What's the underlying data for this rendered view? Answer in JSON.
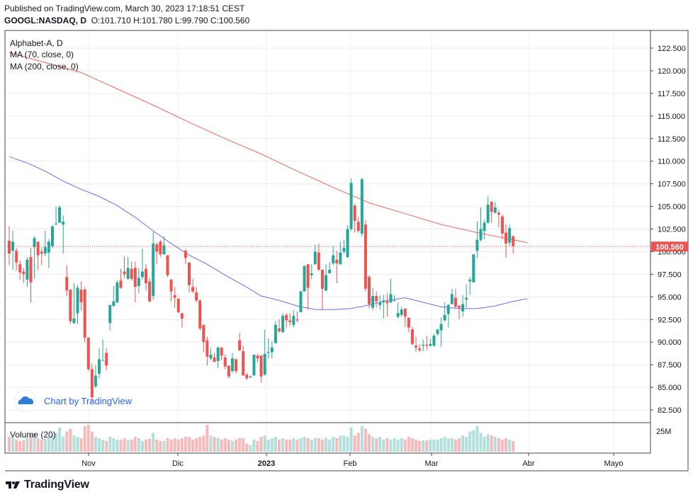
{
  "header": {
    "published": "Published on TradingView.com, March 30, 2023 17:18:51 CEST",
    "symbol": "GOOGL:NASDAQ, D",
    "o_label": "O:",
    "o_value": "101.710",
    "h_label": "H:",
    "h_value": "101.780",
    "l_label": "L:",
    "l_value": "99.790",
    "c_label": "C:",
    "c_value": "100.560"
  },
  "legend": {
    "title": "Alphabet-A, D",
    "ma70": "MA (70, close, 0)",
    "ma200": "MA (200, close, 0)"
  },
  "volume_pane": {
    "label": "Volume (20)",
    "axis_label": "25M"
  },
  "watermark": {
    "text": "Chart by TradingView"
  },
  "footer": {
    "brand": "TradingView"
  },
  "colors": {
    "up": "#26a69a",
    "down": "#ef5350",
    "up_volume": "#b2dfdb",
    "down_volume": "#f7b9b9",
    "ma70": "#6b6bf0",
    "ma200": "#f0665a",
    "last_price_bg": "#ef5350",
    "grid": "#e9ecf2",
    "axis_text": "#131722"
  },
  "chart_data": {
    "type": "candlestick",
    "price_axis": {
      "ticks": [
        "122.500",
        "120.000",
        "117.500",
        "115.000",
        "112.500",
        "110.000",
        "107.500",
        "105.000",
        "102.500",
        "100.000",
        "97.500",
        "95.000",
        "92.500",
        "90.000",
        "87.500",
        "85.000",
        "82.500"
      ],
      "range": [
        80.5,
        124.0
      ]
    },
    "time_axis": {
      "labels": [
        "Nov",
        "Dic",
        "2023",
        "Feb",
        "Mar",
        "Abr",
        "Mayo"
      ]
    },
    "last_price": "100.560",
    "candles": [
      [
        101.2,
        99.8,
        102.8,
        98.5
      ],
      [
        100.1,
        101.1,
        102.3,
        98.0
      ],
      [
        100.1,
        98.8,
        100.4,
        97.9
      ],
      [
        98.6,
        97.7,
        99.0,
        96.9
      ],
      [
        97.8,
        97.5,
        98.2,
        96.5
      ],
      [
        96.9,
        99.1,
        99.4,
        96.1
      ],
      [
        99.4,
        96.6,
        100.4,
        94.4
      ],
      [
        100.5,
        101.5,
        101.7,
        97.0
      ],
      [
        101.1,
        99.6,
        101.1,
        98.0
      ],
      [
        100.0,
        99.8,
        100.4,
        98.5
      ],
      [
        99.8,
        100.5,
        102.3,
        99.5
      ],
      [
        99.9,
        101.1,
        101.4,
        98.2
      ],
      [
        100.6,
        102.8,
        102.9,
        100.4
      ],
      [
        103.0,
        103.1,
        105.0,
        103.0
      ],
      [
        103.2,
        104.9,
        105.1,
        103.2
      ],
      [
        103.0,
        103.3,
        104.0,
        99.8
      ],
      [
        97.2,
        95.7,
        98.5,
        95.1
      ],
      [
        95.8,
        92.3,
        95.8,
        92.0
      ],
      [
        92.1,
        92.6,
        96.5,
        92.0
      ],
      [
        93.2,
        96.0,
        96.3,
        92.0
      ],
      [
        95.8,
        94.4,
        96.7,
        93.5
      ],
      [
        95.8,
        90.5,
        96.1,
        90.0
      ],
      [
        90.5,
        87.0,
        90.5,
        86.8
      ],
      [
        87.0,
        83.9,
        87.6,
        83.3
      ],
      [
        85.1,
        86.3,
        87.5,
        84.9
      ],
      [
        86.5,
        88.1,
        89.3,
        86.0
      ],
      [
        88.0,
        88.0,
        90.3,
        88.0
      ],
      [
        88.8,
        87.4,
        89.3,
        86.9
      ],
      [
        92.1,
        94.1,
        94.1,
        91.3
      ],
      [
        94.0,
        94.5,
        96.2,
        93.9
      ],
      [
        94.4,
        96.6,
        96.8,
        94.3
      ],
      [
        96.8,
        96.0,
        98.1,
        95.9
      ],
      [
        97.8,
        97.5,
        99.5,
        97.1
      ],
      [
        97.0,
        98.2,
        99.4,
        96.9
      ],
      [
        98.1,
        97.0,
        98.9,
        96.8
      ],
      [
        98.2,
        96.1,
        98.9,
        94.4
      ],
      [
        96.2,
        97.1,
        98.2,
        95.4
      ],
      [
        97.2,
        97.8,
        100.3,
        96.9
      ],
      [
        98.1,
        96.5,
        98.6,
        95.7
      ],
      [
        96.7,
        94.5,
        97.1,
        94.4
      ],
      [
        95.1,
        100.9,
        102.2,
        94.7
      ],
      [
        100.8,
        100.0,
        101.0,
        98.6
      ],
      [
        101.1,
        99.7,
        101.3,
        99.4
      ],
      [
        99.7,
        100.7,
        101.7,
        99.7
      ],
      [
        99.6,
        97.4,
        99.6,
        97.2
      ],
      [
        96.9,
        95.6,
        97.0,
        94.5
      ],
      [
        95.2,
        94.9,
        96.1,
        93.8
      ],
      [
        94.8,
        93.3,
        94.8,
        93.2
      ],
      [
        93.2,
        92.6,
        93.2,
        91.6
      ],
      [
        100.1,
        99.3,
        100.3,
        98.6
      ],
      [
        98.8,
        96.3,
        98.8,
        95.5
      ],
      [
        96.1,
        95.6,
        97.0,
        95.4
      ],
      [
        95.5,
        94.6,
        96.1,
        94.4
      ],
      [
        94.6,
        91.5,
        94.7,
        91.3
      ],
      [
        91.9,
        90.0,
        91.9,
        88.9
      ],
      [
        90.2,
        88.4,
        90.6,
        87.4
      ],
      [
        88.2,
        88.6,
        89.4,
        88.0
      ],
      [
        88.3,
        87.8,
        88.8,
        87.8
      ],
      [
        87.9,
        89.4,
        89.5,
        87.1
      ],
      [
        89.4,
        88.5,
        89.4,
        88.0
      ],
      [
        88.3,
        87.3,
        88.6,
        87.0
      ],
      [
        87.4,
        86.2,
        87.4,
        86.0
      ],
      [
        86.8,
        88.2,
        88.8,
        86.6
      ],
      [
        88.1,
        86.8,
        88.2,
        86.5
      ],
      [
        90.2,
        89.1,
        91.0,
        89.0
      ],
      [
        89.0,
        86.3,
        89.6,
        86.3
      ],
      [
        86.4,
        86.0,
        86.6,
        85.8
      ],
      [
        86.1,
        86.2,
        86.3,
        86.0
      ],
      [
        86.3,
        88.6,
        88.6,
        86.3
      ],
      [
        88.5,
        88.2,
        88.7,
        87.8
      ],
      [
        88.5,
        86.2,
        88.6,
        85.5
      ],
      [
        86.4,
        88.7,
        91.4,
        86.3
      ],
      [
        88.8,
        88.9,
        90.4,
        88.2
      ],
      [
        88.9,
        89.4,
        90.1,
        88.2
      ],
      [
        89.9,
        91.9,
        92.3,
        89.8
      ],
      [
        91.5,
        91.2,
        92.5,
        91.0
      ],
      [
        91.1,
        92.9,
        93.2,
        91.0
      ],
      [
        93.0,
        92.4,
        93.2,
        91.6
      ],
      [
        92.4,
        92.2,
        93.2,
        91.8
      ],
      [
        91.9,
        92.9,
        93.5,
        91.6
      ],
      [
        92.5,
        92.4,
        93.4,
        92.2
      ],
      [
        93.3,
        95.6,
        95.7,
        93.3
      ],
      [
        95.6,
        98.4,
        98.5,
        95.6
      ],
      [
        98.6,
        96.0,
        98.6,
        93.6
      ],
      [
        97.4,
        97.6,
        98.6,
        97.0
      ],
      [
        98.6,
        100.0,
        100.8,
        98.6
      ],
      [
        99.9,
        98.0,
        100.9,
        97.9
      ],
      [
        98.0,
        95.9,
        98.0,
        93.6
      ],
      [
        95.7,
        97.4,
        98.6,
        95.6
      ],
      [
        97.6,
        98.0,
        98.8,
        97.6
      ],
      [
        98.7,
        99.6,
        100.6,
        98.5
      ],
      [
        99.1,
        98.7,
        100.1,
        96.5
      ],
      [
        98.6,
        99.9,
        101.1,
        98.6
      ],
      [
        100.0,
        100.4,
        101.3,
        99.8
      ],
      [
        99.4,
        102.5,
        102.9,
        99.3
      ],
      [
        102.5,
        107.6,
        108.1,
        102.3
      ],
      [
        105.1,
        103.4,
        105.3,
        102.1
      ],
      [
        103.3,
        102.3,
        103.8,
        102.1
      ],
      [
        102.0,
        108.0,
        108.2,
        101.7
      ],
      [
        103.0,
        95.9,
        103.5,
        95.6
      ],
      [
        97.2,
        94.2,
        97.4,
        93.7
      ],
      [
        93.8,
        95.1,
        96.0,
        93.5
      ],
      [
        95.1,
        94.5,
        95.6,
        93.8
      ],
      [
        94.1,
        94.4,
        95.2,
        93.6
      ],
      [
        94.4,
        94.6,
        95.2,
        92.6
      ],
      [
        94.5,
        94.3,
        95.4,
        92.8
      ],
      [
        94.4,
        95.3,
        97.0,
        94.3
      ],
      [
        94.6,
        94.6,
        95.2,
        94.5
      ],
      [
        92.8,
        93.2,
        94.4,
        92.6
      ],
      [
        93.0,
        93.6,
        93.9,
        92.8
      ],
      [
        93.7,
        92.8,
        93.7,
        91.7
      ],
      [
        92.7,
        91.6,
        92.7,
        91.1
      ],
      [
        91.4,
        89.8,
        91.7,
        89.6
      ],
      [
        89.6,
        89.4,
        90.6,
        88.9
      ],
      [
        89.3,
        89.1,
        89.8,
        88.9
      ],
      [
        89.6,
        89.7,
        90.3,
        89.0
      ],
      [
        89.7,
        89.6,
        90.7,
        89.1
      ],
      [
        89.6,
        89.8,
        90.4,
        89.5
      ],
      [
        89.6,
        90.7,
        90.9,
        89.5
      ],
      [
        90.9,
        91.4,
        91.4,
        90.7
      ],
      [
        91.3,
        92.0,
        92.7,
        89.5
      ],
      [
        92.4,
        93.0,
        94.4,
        92.3
      ],
      [
        93.1,
        94.1,
        94.2,
        91.6
      ],
      [
        94.2,
        95.3,
        95.9,
        94.2
      ],
      [
        94.9,
        93.9,
        95.9,
        93.8
      ],
      [
        94.0,
        93.8,
        94.1,
        92.5
      ],
      [
        93.4,
        94.2,
        95.2,
        92.8
      ],
      [
        94.7,
        94.9,
        96.4,
        93.8
      ],
      [
        96.7,
        96.9,
        97.2,
        95.2
      ],
      [
        96.6,
        99.7,
        99.7,
        96.6
      ],
      [
        100.1,
        101.3,
        103.4,
        99.3
      ],
      [
        101.3,
        102.5,
        104.9,
        101.1
      ],
      [
        102.3,
        103.2,
        103.5,
        101.4
      ],
      [
        103.2,
        105.2,
        106.1,
        103.1
      ],
      [
        105.5,
        104.4,
        105.6,
        103.2
      ],
      [
        104.3,
        104.9,
        105.5,
        104.2
      ],
      [
        104.3,
        104.1,
        104.6,
        102.7
      ],
      [
        103.9,
        102.0,
        104.1,
        101.4
      ],
      [
        102.1,
        100.9,
        103.0,
        99.3
      ],
      [
        101.0,
        102.6,
        103.0,
        100.6
      ],
      [
        101.7,
        100.6,
        101.8,
        99.8
      ]
    ],
    "volume_relative": [
      0.55,
      0.5,
      0.45,
      0.4,
      0.42,
      0.5,
      0.65,
      0.7,
      0.5,
      0.45,
      0.48,
      0.55,
      0.6,
      0.7,
      0.9,
      0.55,
      0.75,
      0.85,
      0.6,
      0.55,
      0.5,
      0.95,
      1.0,
      0.75,
      0.55,
      0.5,
      0.45,
      0.4,
      0.55,
      0.5,
      0.45,
      0.45,
      0.5,
      0.42,
      0.45,
      0.55,
      0.5,
      0.4,
      0.45,
      0.48,
      0.7,
      0.45,
      0.4,
      0.4,
      0.5,
      0.45,
      0.5,
      0.45,
      0.5,
      0.55,
      0.55,
      0.45,
      0.5,
      0.55,
      0.6,
      1.0,
      0.6,
      0.55,
      0.5,
      0.45,
      0.5,
      0.45,
      0.4,
      0.45,
      0.5,
      0.5,
      0.3,
      0.25,
      0.45,
      0.4,
      0.55,
      0.6,
      0.45,
      0.5,
      0.55,
      0.45,
      0.5,
      0.45,
      0.45,
      0.5,
      0.45,
      0.5,
      0.55,
      0.5,
      0.45,
      0.5,
      0.5,
      0.45,
      0.5,
      0.45,
      0.55,
      0.5,
      0.6,
      0.6,
      0.55,
      0.9,
      0.6,
      0.7,
      0.95,
      0.85,
      0.65,
      0.55,
      0.5,
      0.55,
      0.45,
      0.5,
      0.45,
      0.5,
      0.45,
      0.5,
      0.45,
      0.55,
      0.5,
      0.45,
      0.4,
      0.42,
      0.42,
      0.45,
      0.45,
      0.45,
      0.5,
      0.55,
      0.5,
      0.5,
      0.45,
      0.5,
      0.6,
      0.55,
      0.75,
      0.8,
      0.95,
      0.7,
      0.55,
      0.65,
      0.6,
      0.55,
      0.5,
      0.45,
      0.5,
      0.45,
      0.4
    ],
    "ma70": [
      [
        0,
        110.5
      ],
      [
        5,
        109.8
      ],
      [
        10,
        108.9
      ],
      [
        15,
        107.8
      ],
      [
        20,
        106.9
      ],
      [
        25,
        106.1
      ],
      [
        30,
        105.1
      ],
      [
        35,
        103.8
      ],
      [
        40,
        102.3
      ],
      [
        45,
        100.9
      ],
      [
        50,
        99.6
      ],
      [
        55,
        98.6
      ],
      [
        60,
        97.4
      ],
      [
        65,
        96.3
      ],
      [
        70,
        95.1
      ],
      [
        75,
        94.6
      ],
      [
        80,
        94.0
      ],
      [
        85,
        93.6
      ],
      [
        90,
        93.6
      ],
      [
        95,
        93.7
      ],
      [
        100,
        94.1
      ],
      [
        105,
        94.6
      ],
      [
        110,
        94.9
      ],
      [
        115,
        94.4
      ],
      [
        120,
        93.9
      ],
      [
        125,
        93.7
      ],
      [
        130,
        93.7
      ],
      [
        135,
        94.0
      ],
      [
        140,
        94.5
      ],
      [
        144,
        94.8
      ]
    ],
    "ma200": [
      [
        0,
        122.0
      ],
      [
        10,
        120.9
      ],
      [
        20,
        119.8
      ],
      [
        30,
        118.0
      ],
      [
        40,
        116.2
      ],
      [
        50,
        114.3
      ],
      [
        60,
        112.5
      ],
      [
        70,
        110.8
      ],
      [
        80,
        108.9
      ],
      [
        90,
        107.1
      ],
      [
        100,
        105.4
      ],
      [
        110,
        104.2
      ],
      [
        120,
        103.0
      ],
      [
        130,
        102.1
      ],
      [
        140,
        101.3
      ],
      [
        144,
        101.0
      ]
    ]
  }
}
